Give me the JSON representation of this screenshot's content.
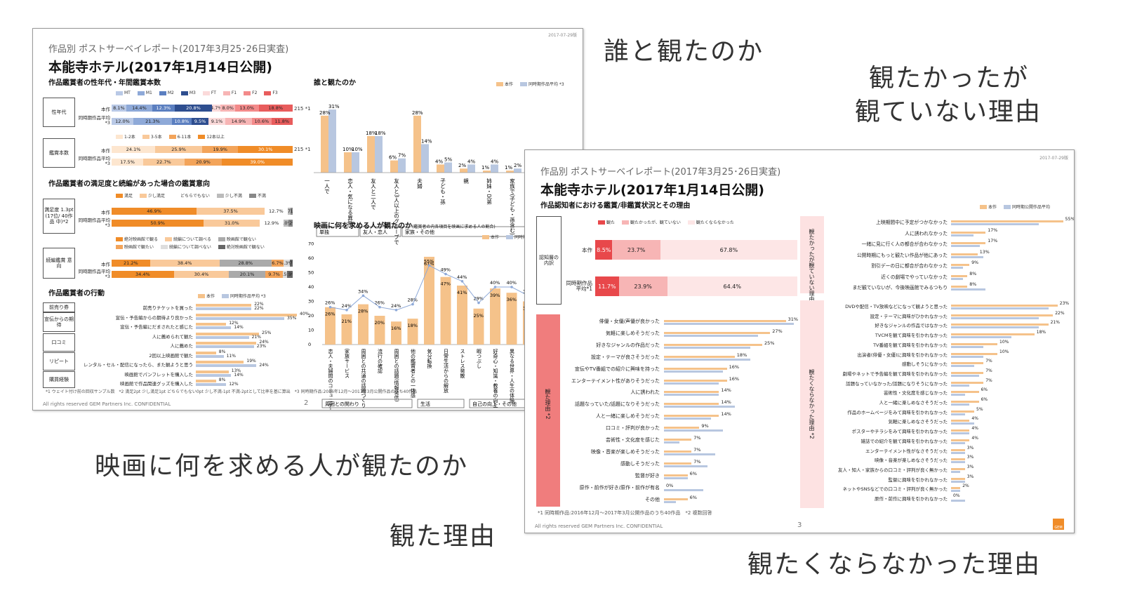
{
  "captions": {
    "who": "誰と観たのか",
    "not_watched_1": "観たかったが",
    "not_watched_2": "観ていない理由",
    "seek": "映画に何を求める人が観たのか",
    "reason": "観た理由",
    "not_want": "観たくならなかった理由"
  },
  "colors": {
    "honsaku": "#f5c28a",
    "avg": "#b8c7e0",
    "orange": "#f08c28",
    "red": "#f07d7d",
    "pink": "#fde2e2"
  },
  "slide1": {
    "subtitle": "作品別 ポストサーベイレポート(2017年3月25･26日実査)",
    "title": "本能寺ホテル(2017年1月14日公開)",
    "date": "2017-07-29版",
    "sec_demo": "作品鑑賞者の性年代・年間鑑賞本数",
    "demo_legend": [
      "MT",
      "M1",
      "M2",
      "M3",
      "FT",
      "F1",
      "F2",
      "F3"
    ],
    "seinendai": "性年代",
    "kanshou": "鑑賞本数",
    "row_honsaku": "本作",
    "row_avg": "同時期作品平均 *3",
    "gender_honsaku": [
      "8.1%",
      "14.4%",
      "12.3%",
      "20.8%",
      "4.7%",
      "8.0%",
      "13.0%",
      "18.8%"
    ],
    "gender_avg": [
      "12.0%",
      "21.3%",
      "10.8%",
      "9.5%",
      "9.1%",
      "14.9%",
      "10.6%",
      "11.8%"
    ],
    "gender_n": "215 *1",
    "count_legend": [
      "1-2本",
      "3-5本",
      "6-11本",
      "12本以上"
    ],
    "count_honsaku": [
      "24.1%",
      "25.9%",
      "19.9%",
      "30.1%"
    ],
    "count_avg": [
      "17.5%",
      "22.7%",
      "20.9%",
      "39.0%"
    ],
    "count_n": "215 *1",
    "sec_sat": "作品鑑賞者の満足度と続編があった場合の鑑賞意向",
    "sat_legend": [
      "満足",
      "少し満足",
      "どちらでもない",
      "少し不満",
      "不満"
    ],
    "sat_box": "満足度 1.3pt (17位/ 40作品 中)*2",
    "sat_honsaku": [
      "46.9%",
      "37.5%",
      "12.7%",
      "1.7%",
      "1.1%"
    ],
    "sat_avg": [
      "50.9%",
      "31.0%",
      "12.9%",
      "3.0%",
      "2.2%"
    ],
    "sequel_legend": [
      "絶対映画館で観る",
      "続編について調べる",
      "映画館で観ない",
      "映画館で観たい",
      "続編について調べない",
      "絶対映画館で観ない"
    ],
    "sequel_box": "続編鑑賞 意向",
    "sequel_honsaku": [
      "21.2%",
      "38.4%",
      "28.8%",
      "6.7%",
      "3.3%",
      "1.7%"
    ],
    "sequel_avg": [
      "34.4%",
      "30.4%",
      "20.1%",
      "9.7%",
      "2.5%",
      "2.9%"
    ],
    "sec_action": "作品鑑賞者の行動",
    "action_legend": [
      "本作",
      "同時期作品平均 *3"
    ],
    "action_cats": [
      "前売り券",
      "宣伝からの期待",
      "口コミ",
      "リピート",
      "購買経験"
    ],
    "actions": [
      {
        "label": "前売りチケットを買った",
        "a": "22%",
        "b": "22%",
        "av": 22,
        "bv": 22
      },
      {
        "label": "宣伝・予告編からの期待より良かった",
        "a": "40%",
        "b": "35%",
        "av": 40,
        "bv": 35
      },
      {
        "label": "宣伝・予告編にだまされたと感じた",
        "a": "12%",
        "b": "14%",
        "av": 12,
        "bv": 14
      },
      {
        "label": "人に薦められて観た",
        "a": "25%",
        "b": "21%",
        "av": 25,
        "bv": 21
      },
      {
        "label": "人に薦めた",
        "a": "24%",
        "b": "23%",
        "av": 24,
        "bv": 23
      },
      {
        "label": "2回以上映画館で観た",
        "a": "8%",
        "b": "11%",
        "av": 8,
        "bv": 11
      },
      {
        "label": "レンタル・セル・配信になったら、また観ようと思う",
        "a": "19%",
        "b": "24%",
        "av": 19,
        "bv": 24
      },
      {
        "label": "映画館でパンフレットを購入した",
        "a": "13%",
        "b": "14%",
        "av": 13,
        "bv": 14
      },
      {
        "label": "映画館で作品関連グッズを購入した",
        "a": "8%",
        "b": "12%",
        "av": 8,
        "bv": 12
      }
    ],
    "note": "*1 ウェイト付け前の回収サンプル数　*2 満足2pt 少し満足1pt どちらでもない0pt 少し不満-1pt 不満-2ptとして比率を基に算出　*3 同時期作品:2016年12月〜2017年3月公開作品のうち40作品",
    "sec_who": "誰と観たのか",
    "who_legend": [
      "本作",
      "同時期作品平均 *3"
    ],
    "who_cats": [
      "一人で",
      "恋人・気になる異性",
      "友人と二人で",
      "友人と3人以上のグループで",
      "夫婦",
      "子ども・孫",
      "親",
      "姉妹・兄弟",
      "家族で(子ども・孫含む)",
      "その他"
    ],
    "who_a": [
      28,
      10,
      18,
      6,
      28,
      4,
      2,
      1,
      1,
      1
    ],
    "who_b": [
      31,
      10,
      18,
      7,
      14,
      5,
      4,
      4,
      2,
      2
    ],
    "who_a_lbl": [
      "28%",
      "10%",
      "18%",
      "6%",
      "28%",
      "4%",
      "2%",
      "1%",
      "1%",
      "1%"
    ],
    "who_b_lbl": [
      "31%",
      "10%",
      "18%",
      "7%",
      "14%",
      "5%",
      "4%",
      "4%",
      "2%",
      "2%"
    ],
    "who_groups": [
      "単独",
      "友人・恋人",
      "家族・その他"
    ],
    "sec_seek": "映画に何を求める人が観たのか",
    "seek_sub": "(鑑賞者の内各項目を映画に求める人の割合)",
    "seek_legend": [
      "本作",
      "同時期作品平均"
    ],
    "seek_cats": [
      "恋人・夫婦間のコミュニケーション",
      "家族サービス",
      "周囲との共通の話題づくり",
      "流行の確認",
      "周囲との話題(情報発信)",
      "他の鑑賞者との一体感",
      "気分転換",
      "日常生活からの解放",
      "ストレス発散",
      "暇つぶし",
      "好奇心・知識・教養の向上",
      "異なる世界・人生の体験",
      "芸術作品の鑑賞",
      "表現手法の体験"
    ],
    "seek_a": [
      26,
      21,
      28,
      20,
      16,
      18,
      61,
      47,
      41,
      25,
      39,
      36,
      30,
      29
    ],
    "seek_b": [
      26,
      24,
      34,
      26,
      24,
      28,
      55,
      49,
      44,
      29,
      40,
      40,
      34,
      37
    ],
    "seek_a_lbl": [
      "26%",
      "21%",
      "28%",
      "20%",
      "16%",
      "18%",
      "61%",
      "47%",
      "41%",
      "25%",
      "39%",
      "36%",
      "30%",
      "29%"
    ],
    "seek_b_lbl": [
      "26%",
      "24%",
      "34%",
      "26%",
      "24%",
      "28%",
      "55%",
      "49%",
      "44%",
      "29%",
      "40%",
      "40%",
      "34%",
      "37%"
    ],
    "seek_yticks": [
      "0",
      "10",
      "20",
      "30",
      "40",
      "50",
      "60",
      "70"
    ],
    "seek_groups": [
      "周囲との関わり",
      "生活",
      "自己の向上・その他"
    ],
    "footer": "All rights reserved GEM Partners Inc. CONFIDENTIAL",
    "page": "2"
  },
  "slide2": {
    "subtitle": "作品別 ポストサーベイレポート(2017年3月25･26日実査)",
    "title": "本能寺ホテル(2017年1月14日公開)",
    "date": "2017-07-29版",
    "sec": "作品認知者における鑑賞/非鑑賞状況とその理由",
    "legend": [
      "本作",
      "同時期公開作品平均"
    ],
    "status_legend": [
      "観た",
      "観たかったが、観ていない",
      "観たくならなかった"
    ],
    "ninchi": "認知層の内訳",
    "row_honsaku": "本作",
    "row_avg": "同時期作品平均*1",
    "status_honsaku": [
      "8.5%",
      "23.7%",
      "67.8%"
    ],
    "status_avg": [
      "11.7%",
      "23.9%",
      "64.4%"
    ],
    "reason_label": "観た理由 *2",
    "reasons": [
      {
        "label": "俳優・女優/声優が良かった",
        "a": "31%",
        "av": 31,
        "bv": 33
      },
      {
        "label": "気軽に楽しめそうだった",
        "a": "27%",
        "av": 27,
        "bv": 24
      },
      {
        "label": "好きなジャンルの作品だった",
        "a": "25%",
        "av": 25,
        "bv": 22
      },
      {
        "label": "設定・テーマが良さそうだった",
        "a": "18%",
        "av": 18,
        "bv": 22
      },
      {
        "label": "宣伝やTV番組での紹介に興味を持った",
        "a": "16%",
        "av": 16,
        "bv": 15
      },
      {
        "label": "エンターテイメント性がありそうだった",
        "a": "16%",
        "av": 16,
        "bv": 14
      },
      {
        "label": "人に誘われた",
        "a": "14%",
        "av": 14,
        "bv": 14
      },
      {
        "label": "話題なっていた/話題になりそうだった",
        "a": "14%",
        "av": 14,
        "bv": 18
      },
      {
        "label": "人と一緒に楽しめそうだった",
        "a": "14%",
        "av": 14,
        "bv": 12
      },
      {
        "label": "口コミ・評判が良かった",
        "a": "9%",
        "av": 9,
        "bv": 15
      },
      {
        "label": "芸術性・文化度を感じた",
        "a": "7%",
        "av": 7,
        "bv": 4
      },
      {
        "label": "映像・音楽が楽しめそうだった",
        "a": "7%",
        "av": 7,
        "bv": 13
      },
      {
        "label": "感動しそうだった",
        "a": "7%",
        "av": 7,
        "bv": 11
      },
      {
        "label": "監督が好き",
        "a": "6%",
        "av": 6,
        "bv": 6
      },
      {
        "label": "原作・前作が好き/原作・前作が有名",
        "a": "0%",
        "av": 0,
        "bv": 10
      },
      {
        "label": "その他",
        "a": "6%",
        "av": 6,
        "bv": 3
      }
    ],
    "notwatch_label": "観たかったが観ていない理由 *2",
    "notwatch": [
      {
        "label": "上映期間中に予定がつかなかった",
        "a": "55%",
        "av": 55,
        "bv": 43
      },
      {
        "label": "人に誘われなかった",
        "a": "17%",
        "av": 17,
        "bv": 11
      },
      {
        "label": "一緒に見に行く人の都合が合わなかった",
        "a": "17%",
        "av": 17,
        "bv": 14
      },
      {
        "label": "公開時期にもっと観たい作品が他にあった",
        "a": "13%",
        "av": 13,
        "bv": 16
      },
      {
        "label": "割引デーの日に都合が合わなかった",
        "a": "9%",
        "av": 9,
        "bv": 6
      },
      {
        "label": "近くの劇場でやっていなかった",
        "a": "8%",
        "av": 8,
        "bv": 6
      },
      {
        "label": "まだ観ていないが、今後映画館でみるつもり",
        "a": "8%",
        "av": 8,
        "bv": 17
      }
    ],
    "notwant_label": "観たくならなかった理由 *2",
    "notwant": [
      {
        "label": "DVDや配信・TV放映などになって観ようと思った",
        "a": "23%",
        "av": 23,
        "bv": 21
      },
      {
        "label": "設定・テーマに興味がひかれなかった",
        "a": "22%",
        "av": 22,
        "bv": 19
      },
      {
        "label": "好きなジャンルの作品ではなかった",
        "a": "21%",
        "av": 21,
        "bv": 19
      },
      {
        "label": "TVCMを観て興味を引かれなかった",
        "a": "18%",
        "av": 18,
        "bv": 13
      },
      {
        "label": "TV番組を観て興味を引かれなかった",
        "a": "10%",
        "av": 10,
        "bv": 7
      },
      {
        "label": "出演者(俳優・女優)に興味を引かれなかった",
        "a": "10%",
        "av": 10,
        "bv": 7
      },
      {
        "label": "感動しそうになかった",
        "a": "7%",
        "av": 7,
        "bv": 5
      },
      {
        "label": "劇場やネットで予告編を観て興味を引かれなかった",
        "a": "7%",
        "av": 7,
        "bv": 6
      },
      {
        "label": "話題なっていなかった/話題になりそうになかった",
        "a": "7%",
        "av": 7,
        "bv": 4
      },
      {
        "label": "芸術性・文化度を感じなかった",
        "a": "6%",
        "av": 6,
        "bv": 3
      },
      {
        "label": "人と一緒に楽しめなさそうだった",
        "a": "6%",
        "av": 6,
        "bv": 4
      },
      {
        "label": "作品のホームページをみて興味を引かれなかった",
        "a": "5%",
        "av": 5,
        "bv": 3
      },
      {
        "label": "気軽に楽しめなさそうだった",
        "a": "4%",
        "av": 4,
        "bv": 5
      },
      {
        "label": "ポスターやチラシをみて興味を引かれなかった",
        "a": "4%",
        "av": 4,
        "bv": 4
      },
      {
        "label": "雑誌での紹介を観て興味を引かれなかった",
        "a": "4%",
        "av": 4,
        "bv": 3
      },
      {
        "label": "エンターテイメント性がなさそうだった",
        "a": "3%",
        "av": 3,
        "bv": 3
      },
      {
        "label": "映像・音楽が楽しめなさそうだった",
        "a": "3%",
        "av": 3,
        "bv": 3
      },
      {
        "label": "友人・知人・家族からの口コミ・評判が良く無かった",
        "a": "3%",
        "av": 3,
        "bv": 2
      },
      {
        "label": "監督に興味を引かれなかった",
        "a": "3%",
        "av": 3,
        "bv": 3
      },
      {
        "label": "ネットやSNSなどでの口コミ・評判が良く無かった",
        "a": "2%",
        "av": 2,
        "bv": 2
      },
      {
        "label": "原作・前作に興味を引かれなかった",
        "a": "0%",
        "av": 0,
        "bv": 3
      }
    ],
    "note": "*1 同時期作品:2016年12月〜2017年3月公開作品のうち40作品　*2 複数回答",
    "footer": "All rights reserved GEM Partners Inc. CONFIDENTIAL",
    "page": "3",
    "logo": "GEM"
  }
}
